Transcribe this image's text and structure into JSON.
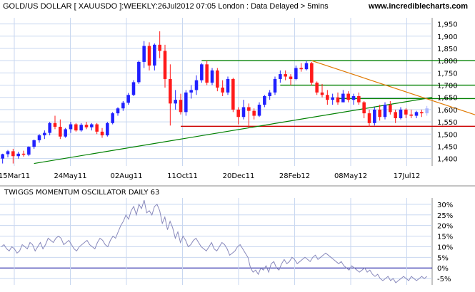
{
  "header": {
    "title": "GOLD/US DOLLAR [ XAUUSDO ]:WEEKLY:26Jul2012 07:05 London : Data Delayed > 5mins",
    "site": "www.incrediblecharts.com"
  },
  "colors": {
    "up": "#2020ff",
    "down": "#ff1a1a",
    "last": "#aab4ff",
    "grid": "#c8d7f0",
    "support": "#cc0000",
    "resistance": "#008000",
    "trendline": "#008000",
    "downtrend": "#e07800",
    "oscillator": "#8888bb",
    "zero_line": "#000099"
  },
  "chart_data": [
    {
      "type": "candlestick",
      "x_tick_labels": [
        "15Mar11",
        "24May11",
        "02Aug11",
        "11Oct11",
        "20Dec11",
        "28Feb12",
        "08May12",
        "17Jul12"
      ],
      "y_tick_labels": [
        "1,400",
        "1,450",
        "1,500",
        "1,550",
        "1,600",
        "1,650",
        "1,700",
        "1,750",
        "1,800",
        "1,850",
        "1,900",
        "1,950"
      ],
      "ylim": [
        1370,
        1975
      ],
      "grid": true,
      "candles": [
        [
          1400,
          1420,
          1380,
          1418
        ],
        [
          1418,
          1435,
          1405,
          1430
        ],
        [
          1430,
          1440,
          1380,
          1410
        ],
        [
          1410,
          1428,
          1400,
          1420
        ],
        [
          1420,
          1432,
          1408,
          1416
        ],
        [
          1416,
          1450,
          1410,
          1448
        ],
        [
          1448,
          1478,
          1440,
          1475
        ],
        [
          1475,
          1500,
          1465,
          1495
        ],
        [
          1495,
          1515,
          1480,
          1505
        ],
        [
          1505,
          1550,
          1495,
          1545
        ],
        [
          1545,
          1575,
          1520,
          1530
        ],
        [
          1530,
          1560,
          1480,
          1490
        ],
        [
          1490,
          1525,
          1485,
          1520
        ],
        [
          1520,
          1550,
          1505,
          1540
        ],
        [
          1540,
          1545,
          1510,
          1515
        ],
        [
          1515,
          1545,
          1510,
          1538
        ],
        [
          1538,
          1550,
          1520,
          1528
        ],
        [
          1528,
          1545,
          1515,
          1540
        ],
        [
          1540,
          1545,
          1500,
          1510
        ],
        [
          1510,
          1525,
          1485,
          1495
        ],
        [
          1495,
          1550,
          1490,
          1545
        ],
        [
          1545,
          1590,
          1540,
          1585
        ],
        [
          1585,
          1610,
          1575,
          1605
        ],
        [
          1605,
          1635,
          1595,
          1628
        ],
        [
          1628,
          1668,
          1620,
          1660
        ],
        [
          1660,
          1720,
          1655,
          1712
        ],
        [
          1712,
          1800,
          1705,
          1795
        ],
        [
          1795,
          1880,
          1770,
          1860
        ],
        [
          1860,
          1875,
          1760,
          1780
        ],
        [
          1780,
          1870,
          1760,
          1865
        ],
        [
          1865,
          1920,
          1810,
          1840
        ],
        [
          1840,
          1865,
          1690,
          1725
        ],
        [
          1725,
          1785,
          1535,
          1625
        ],
        [
          1625,
          1680,
          1600,
          1640
        ],
        [
          1640,
          1665,
          1580,
          1590
        ],
        [
          1590,
          1680,
          1575,
          1670
        ],
        [
          1670,
          1700,
          1645,
          1680
        ],
        [
          1680,
          1740,
          1660,
          1720
        ],
        [
          1720,
          1790,
          1710,
          1785
        ],
        [
          1785,
          1800,
          1700,
          1710
        ],
        [
          1710,
          1770,
          1700,
          1760
        ],
        [
          1760,
          1770,
          1675,
          1690
        ],
        [
          1690,
          1720,
          1655,
          1670
        ],
        [
          1670,
          1735,
          1660,
          1725
        ],
        [
          1725,
          1730,
          1590,
          1600
        ],
        [
          1600,
          1610,
          1540,
          1570
        ],
        [
          1570,
          1640,
          1560,
          1610
        ],
        [
          1610,
          1625,
          1525,
          1595
        ],
        [
          1595,
          1605,
          1560,
          1575
        ],
        [
          1575,
          1630,
          1570,
          1620
        ],
        [
          1620,
          1660,
          1610,
          1655
        ],
        [
          1655,
          1680,
          1640,
          1670
        ],
        [
          1670,
          1735,
          1660,
          1725
        ],
        [
          1725,
          1760,
          1710,
          1745
        ],
        [
          1745,
          1760,
          1720,
          1735
        ],
        [
          1735,
          1745,
          1700,
          1725
        ],
        [
          1725,
          1780,
          1720,
          1770
        ],
        [
          1770,
          1790,
          1755,
          1765
        ],
        [
          1765,
          1800,
          1760,
          1790
        ],
        [
          1790,
          1795,
          1700,
          1710
        ],
        [
          1710,
          1715,
          1660,
          1670
        ],
        [
          1670,
          1705,
          1650,
          1660
        ],
        [
          1660,
          1680,
          1620,
          1640
        ],
        [
          1640,
          1665,
          1620,
          1650
        ],
        [
          1650,
          1670,
          1620,
          1630
        ],
        [
          1630,
          1680,
          1630,
          1665
        ],
        [
          1665,
          1675,
          1630,
          1640
        ],
        [
          1640,
          1665,
          1620,
          1655
        ],
        [
          1655,
          1670,
          1620,
          1630
        ],
        [
          1630,
          1635,
          1565,
          1585
        ],
        [
          1585,
          1600,
          1530,
          1545
        ],
        [
          1545,
          1610,
          1535,
          1600
        ],
        [
          1600,
          1620,
          1555,
          1570
        ],
        [
          1570,
          1630,
          1560,
          1620
        ],
        [
          1620,
          1635,
          1580,
          1590
        ],
        [
          1590,
          1600,
          1545,
          1565
        ],
        [
          1565,
          1610,
          1560,
          1600
        ],
        [
          1600,
          1605,
          1565,
          1580
        ],
        [
          1580,
          1600,
          1565,
          1575
        ],
        [
          1575,
          1595,
          1565,
          1590
        ],
        [
          1590,
          1600,
          1570,
          1585
        ],
        [
          1585,
          1615,
          1575,
          1605
        ]
      ],
      "lines": [
        {
          "kind": "horizontal",
          "role": "resistance",
          "value": 1800,
          "from": 38,
          "to": 95
        },
        {
          "kind": "horizontal",
          "role": "resistance",
          "value": 1700,
          "from": 53,
          "to": 95
        },
        {
          "kind": "horizontal",
          "role": "resistance",
          "value": 1645,
          "from": 64,
          "to": 95
        },
        {
          "kind": "horizontal",
          "role": "support",
          "value": 1532,
          "from": 34,
          "to": 95
        },
        {
          "kind": "segment",
          "role": "trendline",
          "i1": 6,
          "v1": 1380,
          "i2": 82,
          "v2": 1650
        },
        {
          "kind": "segment",
          "role": "downtrend",
          "i1": 59,
          "v1": 1800,
          "i2": 95,
          "v2": 1545
        }
      ]
    },
    {
      "type": "line",
      "title": "TWIGGS MOMENTUM OSCILLATOR DAILY 63",
      "y_tick_labels": [
        "-5%",
        "0%",
        "5%",
        "10%",
        "15%",
        "20%",
        "25%",
        "30%"
      ],
      "ylim": [
        -8,
        33
      ],
      "reference_line": 0,
      "grid": true,
      "values": [
        10,
        11,
        9,
        8,
        10,
        9,
        7,
        8,
        11,
        10,
        9,
        12,
        11,
        8,
        10,
        12,
        9,
        11,
        14,
        13,
        12,
        14,
        15,
        14,
        11,
        12,
        13,
        11,
        9,
        8,
        10,
        11,
        12,
        13,
        11,
        10,
        9,
        12,
        14,
        13,
        11,
        10,
        13,
        15,
        14,
        17,
        20,
        22,
        25,
        23,
        27,
        29,
        25,
        30,
        28,
        32,
        26,
        27,
        25,
        29,
        30,
        27,
        21,
        24,
        18,
        22,
        19,
        14,
        17,
        12,
        15,
        13,
        10,
        11,
        13,
        14,
        12,
        10,
        9,
        8,
        10,
        12,
        9,
        8,
        10,
        12,
        11,
        9,
        6,
        7,
        8,
        10,
        11,
        9,
        7,
        5,
        0,
        -2,
        -1,
        -3,
        0,
        -1,
        1,
        -2,
        2,
        3,
        0,
        -1,
        2,
        4,
        2,
        3,
        5,
        4,
        2,
        3,
        4,
        5,
        4,
        3,
        5,
        6,
        4,
        5,
        6,
        7,
        6,
        5,
        4,
        3,
        2,
        3,
        1,
        0,
        -1,
        1,
        0,
        -1,
        -2,
        -1,
        0,
        -2,
        -1,
        -3,
        -4,
        -3,
        -5,
        -6,
        -5,
        -4,
        -6,
        -5,
        -7,
        -6,
        -5,
        -4,
        -5,
        -6,
        -4,
        -5,
        -6,
        -5,
        -4,
        -5,
        -4
      ]
    }
  ]
}
